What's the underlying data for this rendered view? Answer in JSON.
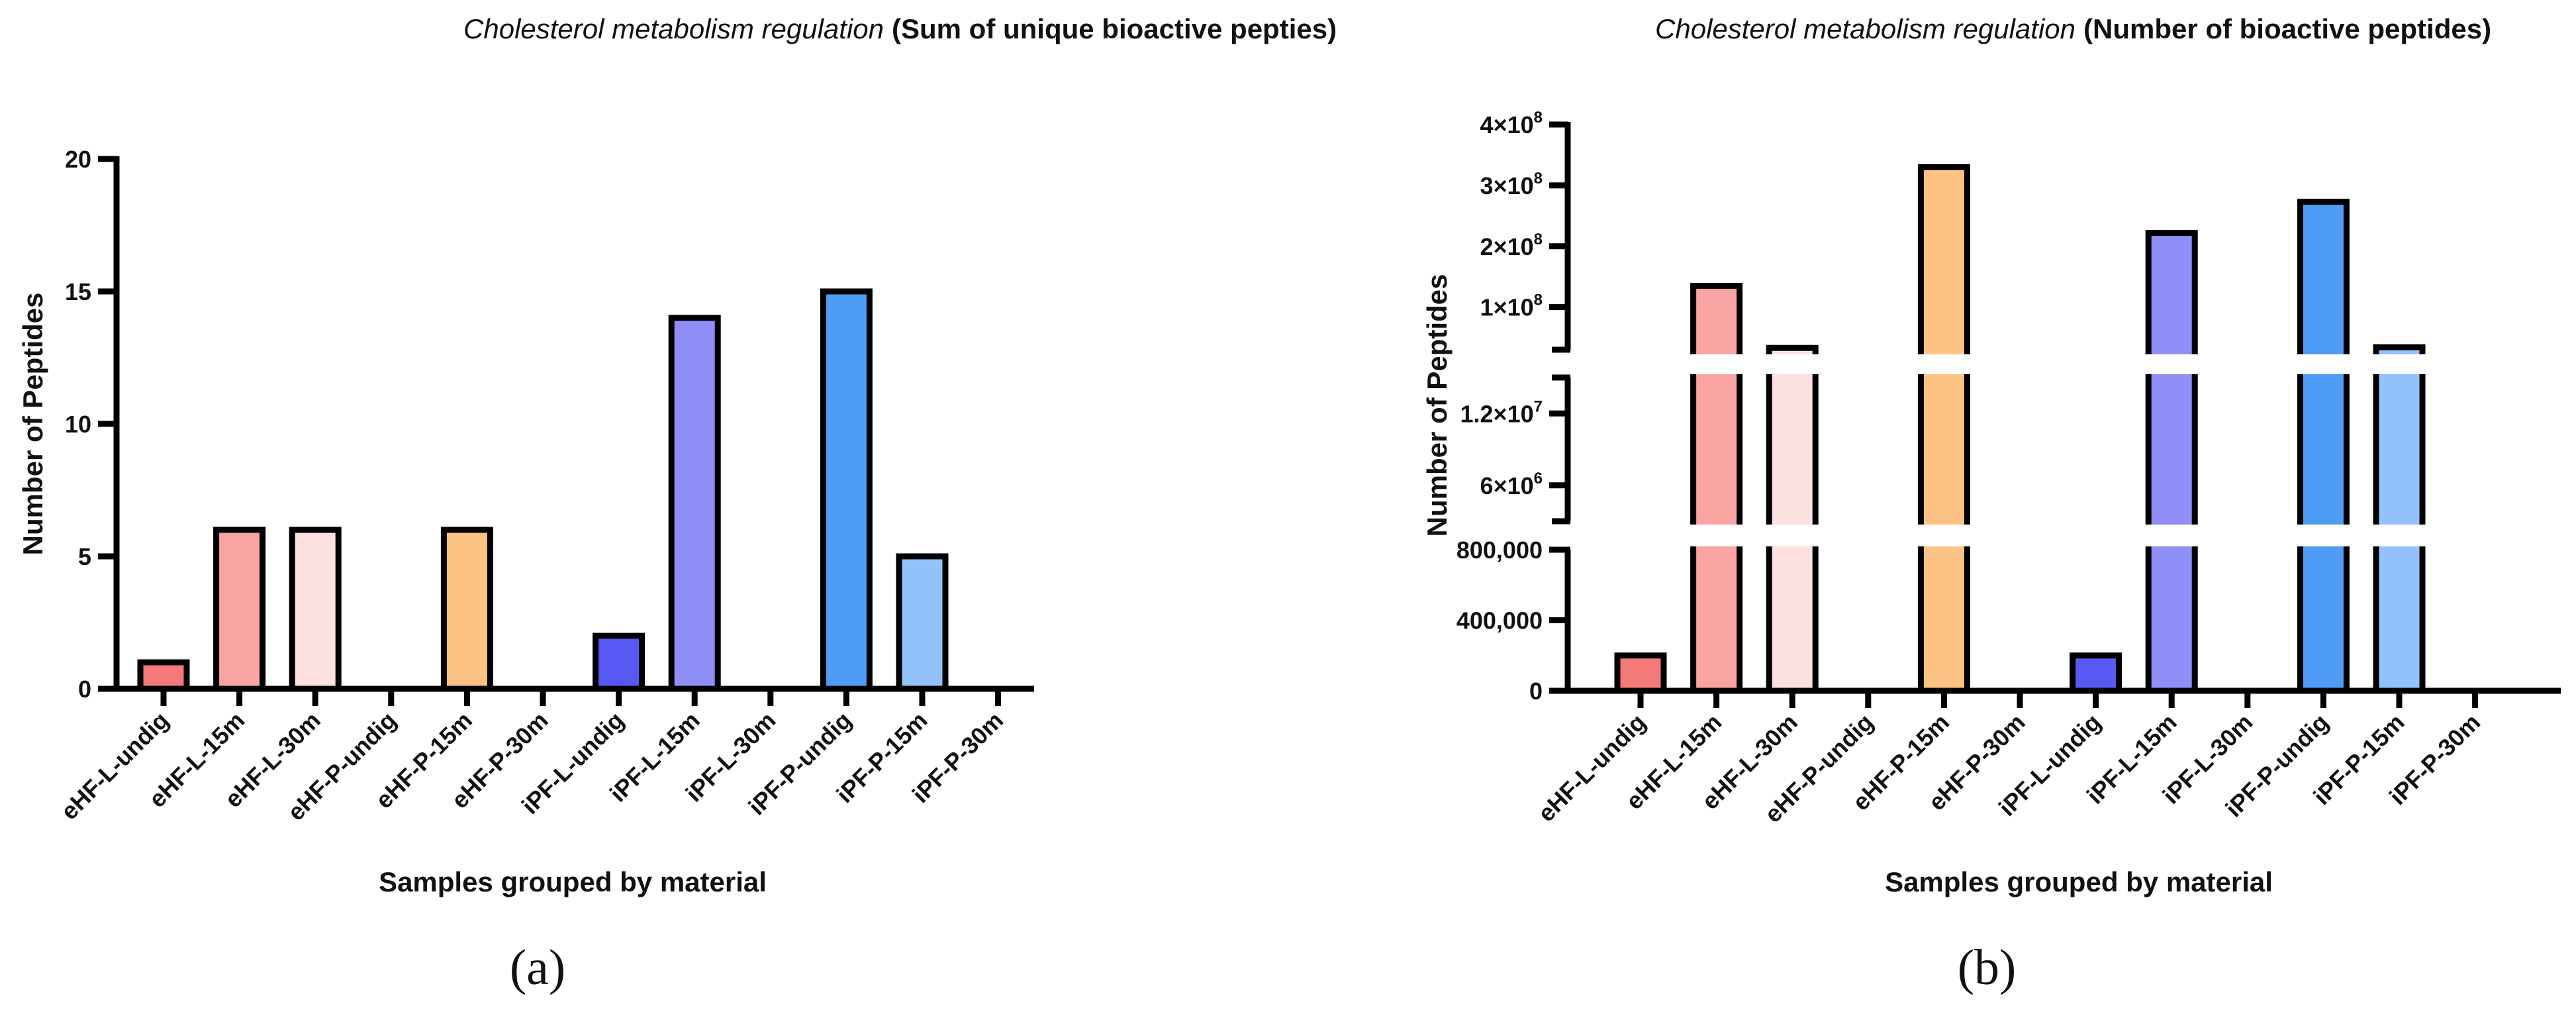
{
  "chart_data": [
    {
      "type": "bar",
      "panel_label": "(a)",
      "title": "Cholesterol metabolism regulation",
      "title_suffix": "(Sum of unique bioactive pepties)",
      "xlabel": "Samples grouped by material",
      "ylabel": "Number of Peptides",
      "ylim": [
        0,
        20
      ],
      "yticks": [
        0,
        5,
        10,
        15,
        20
      ],
      "ytick_labels": [
        "0",
        "5",
        "10",
        "15",
        "20"
      ],
      "categories": [
        "eHF-L-undig",
        "eHF-L-15m",
        "eHF-L-30m",
        "eHF-P-undig",
        "eHF-P-15m",
        "eHF-P-30m",
        "iPF-L-undig",
        "iPF-L-15m",
        "iPF-L-30m",
        "iPF-P-undig",
        "iPF-P-15m",
        "iPF-P-30m"
      ],
      "values": [
        1,
        6,
        6,
        0,
        6,
        0,
        2,
        14,
        0,
        15,
        5,
        0
      ],
      "colors": [
        "#f47a7a",
        "#f9a3a3",
        "#fde0e0",
        "#ffffff",
        "#fdc385",
        "#ffffff",
        "#5858f5",
        "#8f8ff7",
        "#ffffff",
        "#4f9cf7",
        "#93c2fb",
        "#ffffff"
      ]
    },
    {
      "type": "bar",
      "panel_label": "(b)",
      "title": "Cholesterol metabolism regulation",
      "title_suffix": "(Number of bioactive peptides)",
      "xlabel": "Samples grouped by material",
      "ylabel": "Number of Peptides",
      "axis_breaks": true,
      "segments": [
        {
          "range": [
            0,
            800000
          ],
          "ticks": [
            0,
            400000,
            800000
          ],
          "tick_labels": [
            "0",
            "400,000",
            "800,000"
          ]
        },
        {
          "range": [
            3000000,
            15000000
          ],
          "ticks": [
            6000000,
            12000000
          ],
          "tick_labels": [
            "6×10",
            "1.2×10"
          ],
          "tick_exponents": [
            "6",
            "7"
          ]
        },
        {
          "range": [
            30000000,
            400000000
          ],
          "ticks": [
            100000000,
            200000000,
            300000000,
            400000000
          ],
          "tick_labels": [
            "1×10",
            "2×10",
            "3×10",
            "4×10"
          ],
          "tick_exponents": [
            "8",
            "8",
            "8",
            "8"
          ]
        }
      ],
      "categories": [
        "eHF-L-undig",
        "eHF-L-15m",
        "eHF-L-30m",
        "eHF-P-undig",
        "eHF-P-15m",
        "eHF-P-30m",
        "iPF-L-undig",
        "iPF-L-15m",
        "iPF-L-30m",
        "iPF-P-undig",
        "iPF-P-15m",
        "iPF-P-30m"
      ],
      "values": [
        200000,
        135000000,
        33000000,
        0,
        330000000,
        0,
        200000,
        222000000,
        0,
        273000000,
        34000000,
        0
      ],
      "colors": [
        "#f47a7a",
        "#f9a3a3",
        "#fde0e0",
        "#ffffff",
        "#fdc385",
        "#ffffff",
        "#5858f5",
        "#8f8ff7",
        "#ffffff",
        "#4f9cf7",
        "#93c2fb",
        "#ffffff"
      ]
    }
  ]
}
